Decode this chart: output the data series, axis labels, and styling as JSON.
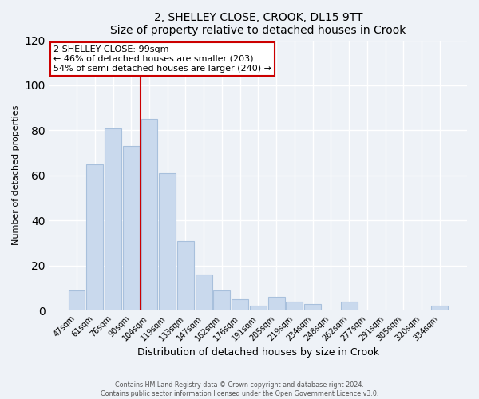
{
  "title": "2, SHELLEY CLOSE, CROOK, DL15 9TT",
  "subtitle": "Size of property relative to detached houses in Crook",
  "xlabel": "Distribution of detached houses by size in Crook",
  "ylabel": "Number of detached properties",
  "bar_labels": [
    "47sqm",
    "61sqm",
    "76sqm",
    "90sqm",
    "104sqm",
    "119sqm",
    "133sqm",
    "147sqm",
    "162sqm",
    "176sqm",
    "191sqm",
    "205sqm",
    "219sqm",
    "234sqm",
    "248sqm",
    "262sqm",
    "277sqm",
    "291sqm",
    "305sqm",
    "320sqm",
    "334sqm"
  ],
  "bar_values": [
    9,
    65,
    81,
    73,
    85,
    61,
    31,
    16,
    9,
    5,
    2,
    6,
    4,
    3,
    0,
    4,
    0,
    0,
    0,
    0,
    2
  ],
  "bar_color": "#c9d9ed",
  "bar_edge_color": "#a8c0dc",
  "vline_x_index": 4,
  "vline_color": "#cc0000",
  "ylim": [
    0,
    120
  ],
  "yticks": [
    0,
    20,
    40,
    60,
    80,
    100,
    120
  ],
  "annotation_line1": "2 SHELLEY CLOSE: 99sqm",
  "annotation_line2": "← 46% of detached houses are smaller (203)",
  "annotation_line3": "54% of semi-detached houses are larger (240) →",
  "annotation_box_facecolor": "#ffffff",
  "annotation_box_edgecolor": "#cc0000",
  "footer_line1": "Contains HM Land Registry data © Crown copyright and database right 2024.",
  "footer_line2": "Contains public sector information licensed under the Open Government Licence v3.0.",
  "background_color": "#eef2f7",
  "plot_background_color": "#eef2f7",
  "grid_color": "#ffffff"
}
